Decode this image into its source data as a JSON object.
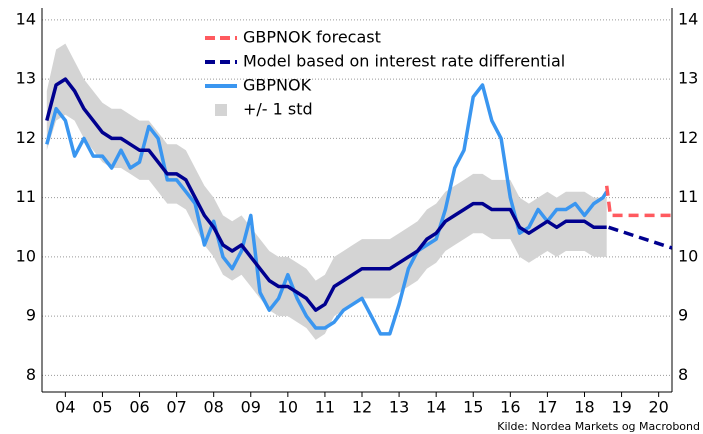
{
  "chart_data": {
    "type": "line",
    "note": "Kilde: Nordea Markets og Macrobond",
    "xlim": [
      2003.87,
      2020.86
    ],
    "ylim": [
      7.72,
      14.2
    ],
    "yticks": [
      8,
      9,
      10,
      11,
      12,
      13,
      14
    ],
    "xticks": [
      {
        "value": 2004.5,
        "label": "04"
      },
      {
        "value": 2005.5,
        "label": "05"
      },
      {
        "value": 2006.5,
        "label": "06"
      },
      {
        "value": 2007.5,
        "label": "07"
      },
      {
        "value": 2008.5,
        "label": "08"
      },
      {
        "value": 2009.5,
        "label": "09"
      },
      {
        "value": 2010.5,
        "label": "10"
      },
      {
        "value": 2011.5,
        "label": "11"
      },
      {
        "value": 2012.5,
        "label": "12"
      },
      {
        "value": 2013.5,
        "label": "13"
      },
      {
        "value": 2014.5,
        "label": "14"
      },
      {
        "value": 2015.5,
        "label": "15"
      },
      {
        "value": 2016.5,
        "label": "16"
      },
      {
        "value": 2017.5,
        "label": "17"
      },
      {
        "value": 2018.5,
        "label": "18"
      },
      {
        "value": 2019.5,
        "label": "19"
      },
      {
        "value": 2020.5,
        "label": "20"
      }
    ],
    "grid": true,
    "x": [
      2004,
      2004.25,
      2004.5,
      2004.75,
      2005,
      2005.25,
      2005.5,
      2005.75,
      2006,
      2006.25,
      2006.5,
      2006.75,
      2007,
      2007.25,
      2007.5,
      2007.75,
      2008,
      2008.25,
      2008.5,
      2008.75,
      2009,
      2009.25,
      2009.5,
      2009.75,
      2010,
      2010.25,
      2010.5,
      2010.75,
      2011,
      2011.25,
      2011.5,
      2011.75,
      2012,
      2012.25,
      2012.5,
      2012.75,
      2013,
      2013.25,
      2013.5,
      2013.75,
      2014,
      2014.25,
      2014.5,
      2014.75,
      2015,
      2015.25,
      2015.5,
      2015.75,
      2016,
      2016.25,
      2016.5,
      2016.75,
      2017,
      2017.25,
      2017.5,
      2017.75,
      2018,
      2018.25,
      2018.5,
      2018.75,
      2019,
      2019.1
    ],
    "band": {
      "name": "+/- 1 std",
      "color": "#d4d4d4",
      "upper": [
        12.8,
        13.5,
        13.6,
        13.3,
        13.0,
        12.8,
        12.6,
        12.5,
        12.5,
        12.4,
        12.3,
        12.3,
        12.1,
        11.9,
        11.9,
        11.8,
        11.5,
        11.2,
        11.0,
        10.7,
        10.6,
        10.7,
        10.5,
        10.3,
        10.1,
        10.0,
        10.0,
        9.9,
        9.8,
        9.6,
        9.7,
        10.0,
        10.1,
        10.2,
        10.3,
        10.3,
        10.3,
        10.3,
        10.4,
        10.5,
        10.6,
        10.8,
        10.9,
        11.1,
        11.2,
        11.3,
        11.4,
        11.4,
        11.3,
        11.3,
        11.3,
        11.0,
        10.9,
        11.0,
        11.1,
        11.0,
        11.1,
        11.1,
        11.1,
        11.0,
        11.0,
        11.0
      ],
      "lower": [
        11.8,
        12.3,
        12.4,
        12.3,
        12.0,
        11.8,
        11.6,
        11.5,
        11.5,
        11.4,
        11.3,
        11.3,
        11.1,
        10.9,
        10.9,
        10.8,
        10.5,
        10.2,
        10.0,
        9.7,
        9.6,
        9.7,
        9.5,
        9.3,
        9.1,
        9.0,
        9.0,
        8.9,
        8.8,
        8.6,
        8.7,
        9.0,
        9.1,
        9.2,
        9.3,
        9.3,
        9.3,
        9.3,
        9.4,
        9.5,
        9.6,
        9.8,
        9.9,
        10.1,
        10.2,
        10.3,
        10.4,
        10.4,
        10.3,
        10.3,
        10.3,
        10.0,
        9.9,
        10.0,
        10.1,
        10.0,
        10.1,
        10.1,
        10.1,
        10.0,
        10.0,
        10.0
      ]
    },
    "series": [
      {
        "name": "GBPNOK forecast",
        "color": "#ff5a5f",
        "dashed": true,
        "x": [
          2019.1,
          2019.2,
          2019.3,
          2020.86
        ],
        "values": [
          11.2,
          10.7,
          10.7,
          10.7
        ]
      },
      {
        "name": "Model based on interest rate differential",
        "color": "#00008f",
        "values": [
          12.3,
          12.9,
          13.0,
          12.8,
          12.5,
          12.3,
          12.1,
          12.0,
          12.0,
          11.9,
          11.8,
          11.8,
          11.6,
          11.4,
          11.4,
          11.3,
          11.0,
          10.7,
          10.5,
          10.2,
          10.1,
          10.2,
          10.0,
          9.8,
          9.6,
          9.5,
          9.5,
          9.4,
          9.3,
          9.1,
          9.2,
          9.5,
          9.6,
          9.7,
          9.8,
          9.8,
          9.8,
          9.8,
          9.9,
          10.0,
          10.1,
          10.3,
          10.4,
          10.6,
          10.7,
          10.8,
          10.9,
          10.9,
          10.8,
          10.8,
          10.8,
          10.5,
          10.4,
          10.5,
          10.6,
          10.5,
          10.6,
          10.6,
          10.6,
          10.5,
          10.5,
          10.5
        ],
        "forecast_x": [
          2019.15,
          2020.86
        ],
        "forecast_values": [
          10.5,
          10.15
        ]
      },
      {
        "name": "GBPNOK",
        "color": "#3a96f0",
        "values": [
          11.9,
          12.5,
          12.3,
          11.7,
          12.0,
          11.7,
          11.7,
          11.5,
          11.8,
          11.5,
          11.6,
          12.2,
          12.0,
          11.3,
          11.3,
          11.1,
          10.9,
          10.2,
          10.6,
          10.0,
          9.8,
          10.1,
          10.7,
          9.4,
          9.1,
          9.3,
          9.7,
          9.3,
          9.0,
          8.8,
          8.8,
          8.9,
          9.1,
          9.2,
          9.3,
          9.0,
          8.7,
          8.7,
          9.2,
          9.8,
          10.1,
          10.2,
          10.3,
          10.8,
          11.5,
          11.8,
          12.7,
          12.9,
          12.3,
          12.0,
          11.0,
          10.4,
          10.5,
          10.8,
          10.6,
          10.8,
          10.8,
          10.9,
          10.7,
          10.9,
          11.0,
          11.1
        ]
      }
    ]
  }
}
